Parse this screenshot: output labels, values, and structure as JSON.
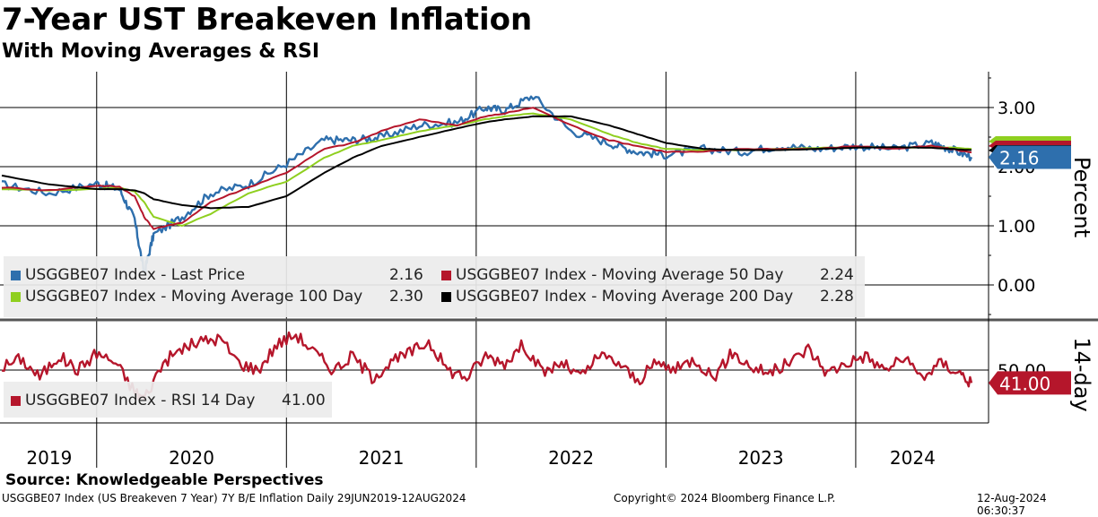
{
  "title": "7-Year UST Breakeven Inflation",
  "subtitle": "With Moving Averages & RSI",
  "source": "Source: Knowledgeable Perspectives",
  "footer": {
    "left": "USGGBE07 Index (US Breakeven 7 Year) 7Y B/E Inflation  Daily 29JUN2019-12AUG2024",
    "middle": "Copyright© 2024 Bloomberg Finance L.P.",
    "right": "12-Aug-2024 06:30:37"
  },
  "chart_data": [
    {
      "type": "line",
      "panel": "price",
      "ylabel": "Percent",
      "ylim": [
        -0.5,
        3.5
      ],
      "y_ticks": [
        "3.00",
        "2.00",
        "1.00",
        "0.00"
      ],
      "x_ticks": [
        "2019",
        "2020",
        "2021",
        "2022",
        "2023",
        "2024"
      ],
      "last_value_tag": "2.16",
      "x": [
        2019.5,
        2019.75,
        2020.0,
        2020.12,
        2020.2,
        2020.25,
        2020.3,
        2020.45,
        2020.6,
        2020.8,
        2021.0,
        2021.2,
        2021.35,
        2021.5,
        2021.7,
        2021.9,
        2022.05,
        2022.15,
        2022.3,
        2022.5,
        2022.7,
        2022.85,
        2023.0,
        2023.2,
        2023.4,
        2023.6,
        2023.8,
        2024.0,
        2024.2,
        2024.4,
        2024.5,
        2024.61
      ],
      "series": [
        {
          "name": "USGGBE07 Index - Last Price",
          "legend_value": "2.16",
          "color": "#2e6fad",
          "values": [
            1.7,
            1.55,
            1.72,
            1.62,
            1.1,
            0.2,
            0.85,
            1.15,
            1.55,
            1.7,
            2.05,
            2.45,
            2.45,
            2.5,
            2.7,
            2.75,
            3.0,
            2.95,
            3.2,
            2.6,
            2.4,
            2.25,
            2.2,
            2.3,
            2.25,
            2.35,
            2.3,
            2.35,
            2.3,
            2.4,
            2.3,
            2.16
          ]
        },
        {
          "name": "USGGBE07 Index - Moving Average 50 Day",
          "legend_value": "2.24",
          "color": "#b5162b",
          "values": [
            1.65,
            1.6,
            1.68,
            1.66,
            1.5,
            1.15,
            0.95,
            1.05,
            1.4,
            1.65,
            1.9,
            2.3,
            2.4,
            2.6,
            2.8,
            2.7,
            2.85,
            2.9,
            3.0,
            2.7,
            2.45,
            2.35,
            2.25,
            2.25,
            2.3,
            2.3,
            2.3,
            2.35,
            2.3,
            2.35,
            2.3,
            2.24
          ]
        },
        {
          "name": "USGGBE07 Index - Moving Average 100 Day",
          "legend_value": "2.30",
          "color": "#8fcf1f",
          "values": [
            1.62,
            1.6,
            1.62,
            1.65,
            1.58,
            1.4,
            1.15,
            1.0,
            1.2,
            1.55,
            1.75,
            2.15,
            2.35,
            2.45,
            2.6,
            2.7,
            2.8,
            2.85,
            2.9,
            2.8,
            2.55,
            2.4,
            2.3,
            2.28,
            2.28,
            2.3,
            2.32,
            2.33,
            2.32,
            2.33,
            2.32,
            2.3
          ]
        },
        {
          "name": "USGGBE07 Index - Moving Average 200 Day",
          "legend_value": "2.28",
          "color": "#000000",
          "values": [
            1.85,
            1.7,
            1.62,
            1.62,
            1.6,
            1.55,
            1.45,
            1.35,
            1.3,
            1.32,
            1.5,
            1.9,
            2.15,
            2.35,
            2.5,
            2.65,
            2.75,
            2.8,
            2.85,
            2.85,
            2.7,
            2.55,
            2.4,
            2.3,
            2.28,
            2.28,
            2.3,
            2.32,
            2.33,
            2.32,
            2.3,
            2.28
          ]
        }
      ]
    },
    {
      "type": "line",
      "panel": "rsi",
      "ylabel": "14-day",
      "ylim": [
        20,
        80
      ],
      "y_ticks": [
        "50.00"
      ],
      "last_value_tag": "41.00",
      "x": [
        2019.5,
        2019.6,
        2019.7,
        2019.8,
        2019.9,
        2020.0,
        2020.1,
        2020.2,
        2020.25,
        2020.35,
        2020.45,
        2020.55,
        2020.65,
        2020.75,
        2020.85,
        2020.95,
        2021.05,
        2021.15,
        2021.25,
        2021.35,
        2021.45,
        2021.55,
        2021.65,
        2021.75,
        2021.85,
        2021.95,
        2022.05,
        2022.15,
        2022.25,
        2022.35,
        2022.45,
        2022.55,
        2022.65,
        2022.75,
        2022.85,
        2022.95,
        2023.05,
        2023.15,
        2023.25,
        2023.35,
        2023.45,
        2023.55,
        2023.65,
        2023.75,
        2023.85,
        2023.95,
        2024.05,
        2024.15,
        2024.25,
        2024.35,
        2024.45,
        2024.55,
        2024.61
      ],
      "series": [
        {
          "name": "USGGBE07 Index - RSI 14 Day",
          "legend_value": "41.00",
          "color": "#b5162b",
          "values": [
            52,
            58,
            45,
            60,
            50,
            62,
            55,
            35,
            30,
            55,
            65,
            70,
            72,
            55,
            50,
            68,
            75,
            62,
            50,
            60,
            45,
            55,
            62,
            70,
            50,
            45,
            60,
            55,
            68,
            48,
            55,
            45,
            60,
            55,
            42,
            55,
            50,
            58,
            45,
            62,
            52,
            48,
            55,
            65,
            48,
            55,
            60,
            50,
            58,
            45,
            55,
            48,
            41
          ]
        }
      ]
    }
  ]
}
